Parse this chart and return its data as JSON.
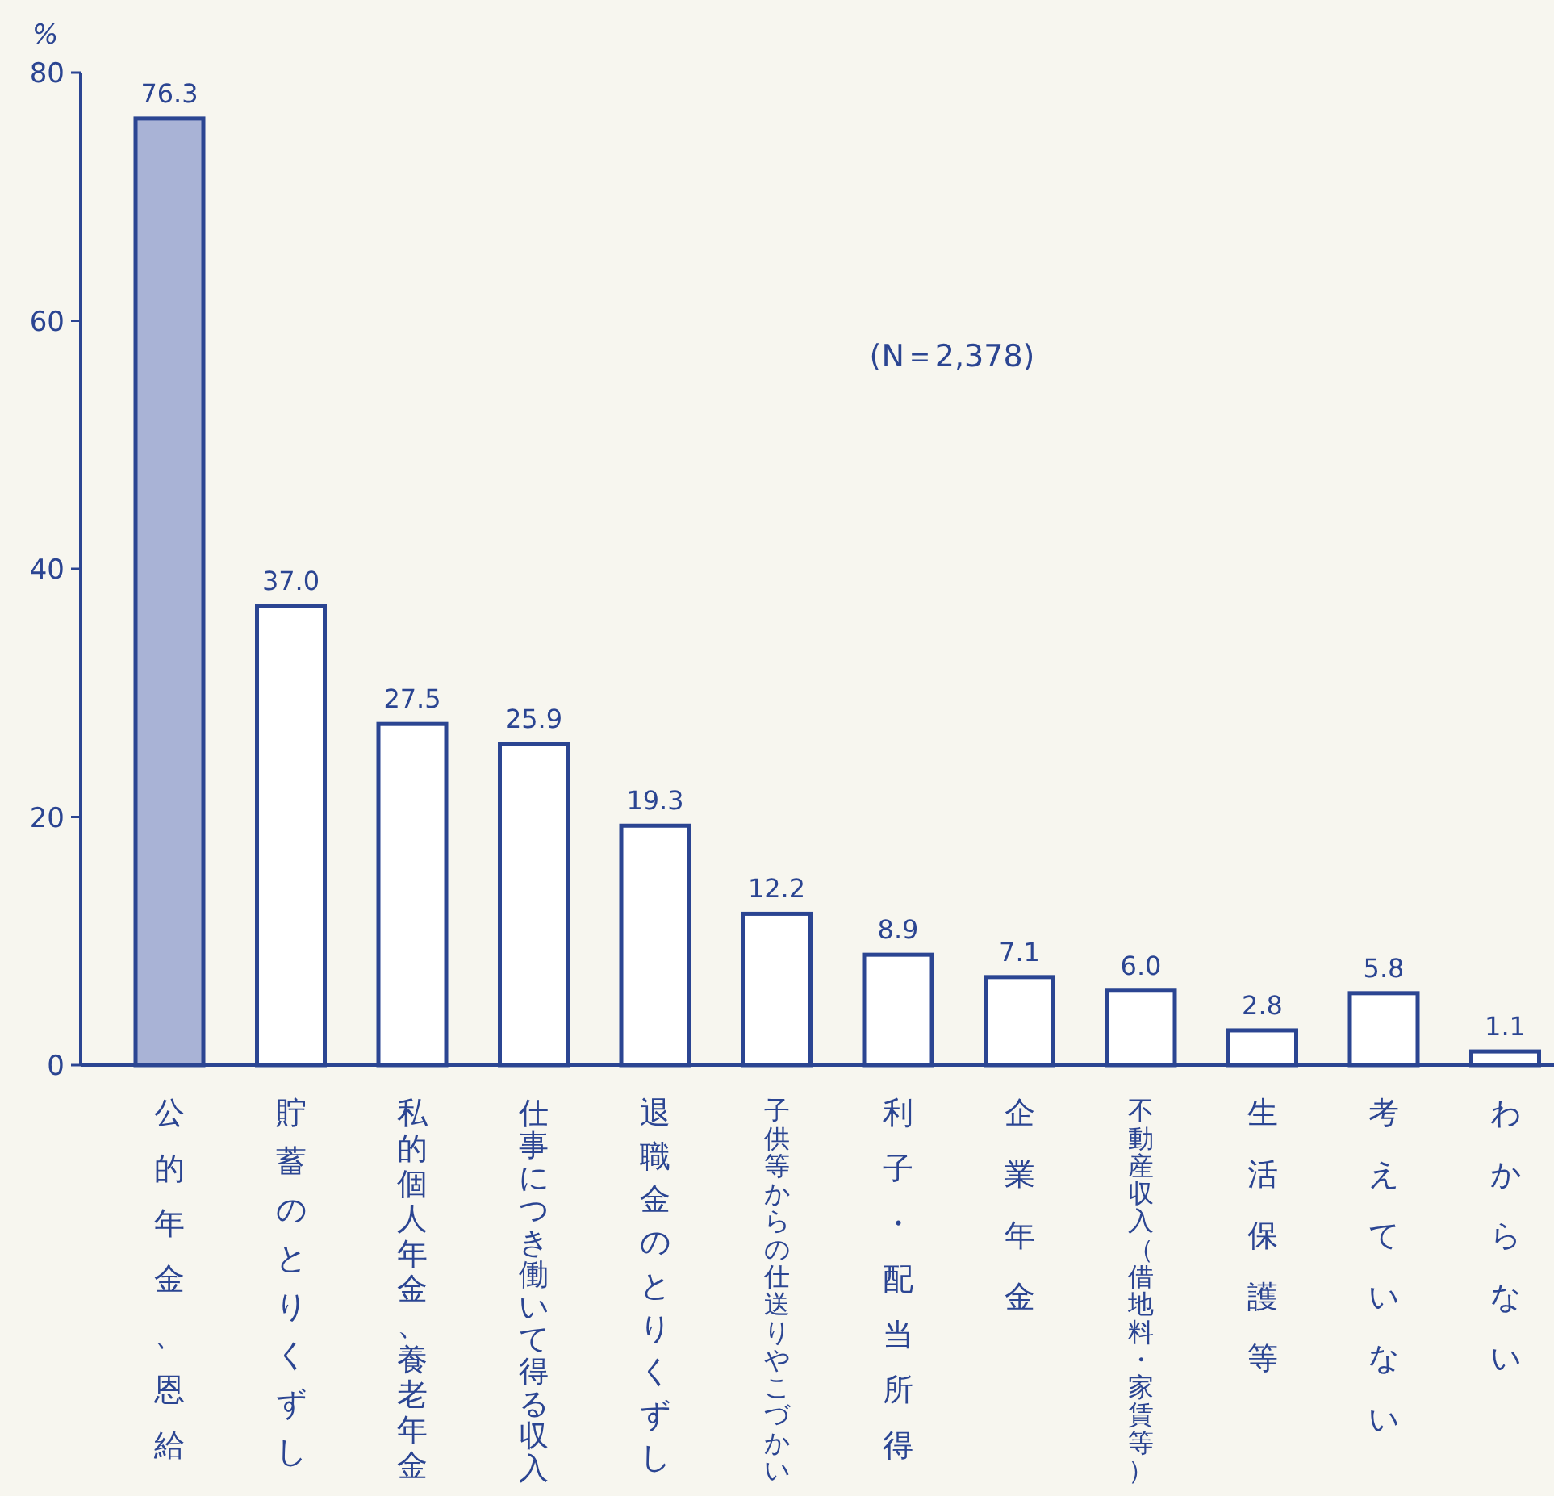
{
  "chart_data": {
    "type": "bar",
    "ylabel": "%",
    "categories": [
      "公的年金、恩給",
      "貯蓄のとりくずし",
      "私的個人年金、養老年金",
      "仕事につき働いて得る収入",
      "退職金のとりくずし",
      "子供等からの仕送りやこづかい",
      "利子・配当所得",
      "企業年金",
      "不動産収入（借地料・家賃等）",
      "生活保護等",
      "考えていない",
      "わからない"
    ],
    "values": [
      76.3,
      37.0,
      27.5,
      25.9,
      19.3,
      12.2,
      8.9,
      7.1,
      6.0,
      2.8,
      5.8,
      1.1
    ],
    "colors": [
      "#a9b3d6",
      "#ffffff",
      "#ffffff",
      "#ffffff",
      "#ffffff",
      "#ffffff",
      "#ffffff",
      "#ffffff",
      "#ffffff",
      "#ffffff",
      "#ffffff",
      "#ffffff"
    ],
    "value_labels": [
      "76.3",
      "37.0",
      "27.5",
      "25.9",
      "19.3",
      "12.2",
      "8.9",
      "7.1",
      "6.0",
      "2.8",
      "5.8",
      "1.1"
    ],
    "ylim": [
      0,
      80
    ],
    "yticks": [
      0,
      20,
      40,
      60,
      80
    ],
    "grid": false,
    "annotations": [
      "(N＝2,378)"
    ]
  }
}
